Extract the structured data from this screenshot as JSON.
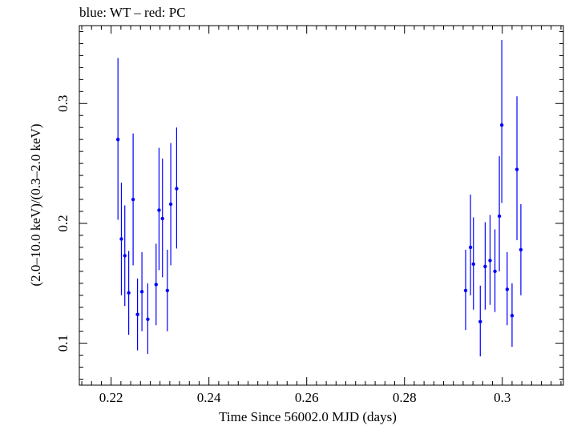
{
  "chart_data": {
    "type": "scatter",
    "title": "blue: WT – red: PC",
    "xlabel": "Time Since 56002.0 MJD (days)",
    "ylabel": "(2.0–10.0 keV)/(0.3–2.0 keV)",
    "xlim": [
      0.2135,
      0.3125
    ],
    "ylim": [
      0.065,
      0.365
    ],
    "x_ticks": [
      0.22,
      0.24,
      0.26,
      0.28,
      0.3
    ],
    "x_tick_labels": [
      "0.22",
      "0.24",
      "0.26",
      "0.28",
      "0.3"
    ],
    "y_ticks": [
      0.1,
      0.2,
      0.3
    ],
    "y_tick_labels": [
      "0.1",
      "0.2",
      "0.3"
    ],
    "grid": false,
    "series": [
      {
        "color": "#0000ff",
        "x": [
          0.2214,
          0.2221,
          0.2228,
          0.2236,
          0.2245,
          0.2254,
          0.2263,
          0.2275,
          0.2292,
          0.2298,
          0.2305,
          0.2315,
          0.2322,
          0.2334,
          0.2925,
          0.2935,
          0.2941,
          0.2955,
          0.2965,
          0.2975,
          0.2985,
          0.2994,
          0.2999,
          0.301,
          0.302,
          0.303,
          0.3038
        ],
        "y": [
          0.27,
          0.187,
          0.173,
          0.142,
          0.22,
          0.124,
          0.143,
          0.12,
          0.149,
          0.211,
          0.204,
          0.144,
          0.216,
          0.229,
          0.144,
          0.18,
          0.166,
          0.118,
          0.164,
          0.169,
          0.16,
          0.206,
          0.282,
          0.145,
          0.123,
          0.245,
          0.178
        ],
        "ylo": [
          0.203,
          0.14,
          0.131,
          0.107,
          0.165,
          0.094,
          0.11,
          0.091,
          0.115,
          0.161,
          0.155,
          0.11,
          0.165,
          0.179,
          0.111,
          0.14,
          0.128,
          0.089,
          0.128,
          0.132,
          0.126,
          0.16,
          0.217,
          0.115,
          0.097,
          0.186,
          0.14
        ],
        "yhi": [
          0.338,
          0.234,
          0.215,
          0.177,
          0.275,
          0.154,
          0.176,
          0.15,
          0.183,
          0.263,
          0.254,
          0.178,
          0.267,
          0.28,
          0.178,
          0.224,
          0.205,
          0.148,
          0.201,
          0.207,
          0.195,
          0.256,
          0.353,
          0.176,
          0.15,
          0.306,
          0.216
        ],
        "xerr": 0.0003
      }
    ]
  }
}
